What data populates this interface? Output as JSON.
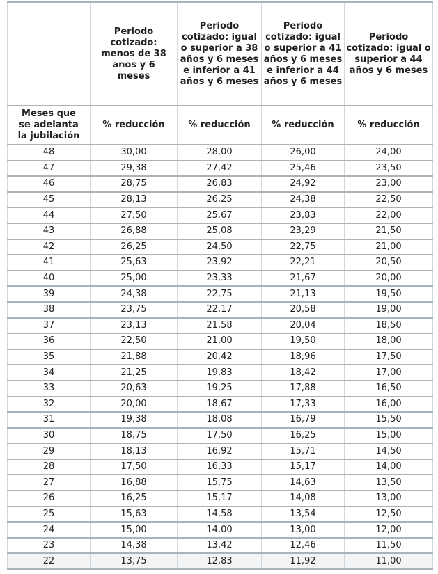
{
  "header": {
    "corner": "",
    "periods": [
      "Periodo cotizado: menos de 38 años y 6 meses",
      "Periodo cotizado: igual o superior a 38 años y 6 meses e inferior a 41 años y 6 meses",
      "Periodo cotizado: igual o superior a 41 años y 6 meses e inferior a 44 años y 6 meses",
      "Periodo cotizado: igual o superior a 44 años y 6 meses"
    ],
    "row_label": "Meses que se adelanta la jubilación",
    "reduction_label": "% reducción"
  },
  "rows": [
    [
      "48",
      "30,00",
      "28,00",
      "26,00",
      "24,00"
    ],
    [
      "47",
      "29,38",
      "27,42",
      "25,46",
      "23,50"
    ],
    [
      "46",
      "28,75",
      "26,83",
      "24,92",
      "23,00"
    ],
    [
      "45",
      "28,13",
      "26,25",
      "24,38",
      "22,50"
    ],
    [
      "44",
      "27,50",
      "25,67",
      "23,83",
      "22,00"
    ],
    [
      "43",
      "26,88",
      "25,08",
      "23,29",
      "21,50"
    ],
    [
      "42",
      "26,25",
      "24,50",
      "22,75",
      "21,00"
    ],
    [
      "41",
      "25,63",
      "23,92",
      "22,21",
      "20,50"
    ],
    [
      "40",
      "25,00",
      "23,33",
      "21,67",
      "20,00"
    ],
    [
      "39",
      "24,38",
      "22,75",
      "21,13",
      "19,50"
    ],
    [
      "38",
      "23,75",
      "22,17",
      "20,58",
      "19,00"
    ],
    [
      "37",
      "23,13",
      "21,58",
      "20,04",
      "18,50"
    ],
    [
      "36",
      "22,50",
      "21,00",
      "19,50",
      "18,00"
    ],
    [
      "35",
      "21,88",
      "20,42",
      "18,96",
      "17,50"
    ],
    [
      "34",
      "21,25",
      "19,83",
      "18,42",
      "17,00"
    ],
    [
      "33",
      "20,63",
      "19,25",
      "17,88",
      "16,50"
    ],
    [
      "32",
      "20,00",
      "18,67",
      "17,33",
      "16,00"
    ],
    [
      "31",
      "19,38",
      "18,08",
      "16,79",
      "15,50"
    ],
    [
      "30",
      "18,75",
      "17,50",
      "16,25",
      "15,00"
    ],
    [
      "29",
      "18,13",
      "16,92",
      "15,71",
      "14,50"
    ],
    [
      "28",
      "17,50",
      "16,33",
      "15,17",
      "14,00"
    ],
    [
      "27",
      "16,88",
      "15,75",
      "14,63",
      "13,50"
    ],
    [
      "26",
      "16,25",
      "15,17",
      "14,08",
      "13,00"
    ],
    [
      "25",
      "15,63",
      "14,58",
      "13,54",
      "12,50"
    ],
    [
      "24",
      "15,00",
      "14,00",
      "13,00",
      "12,00"
    ],
    [
      "23",
      "14,38",
      "13,42",
      "12,46",
      "11,50"
    ],
    [
      "22",
      "13,75",
      "12,83",
      "11,92",
      "11,00"
    ]
  ]
}
